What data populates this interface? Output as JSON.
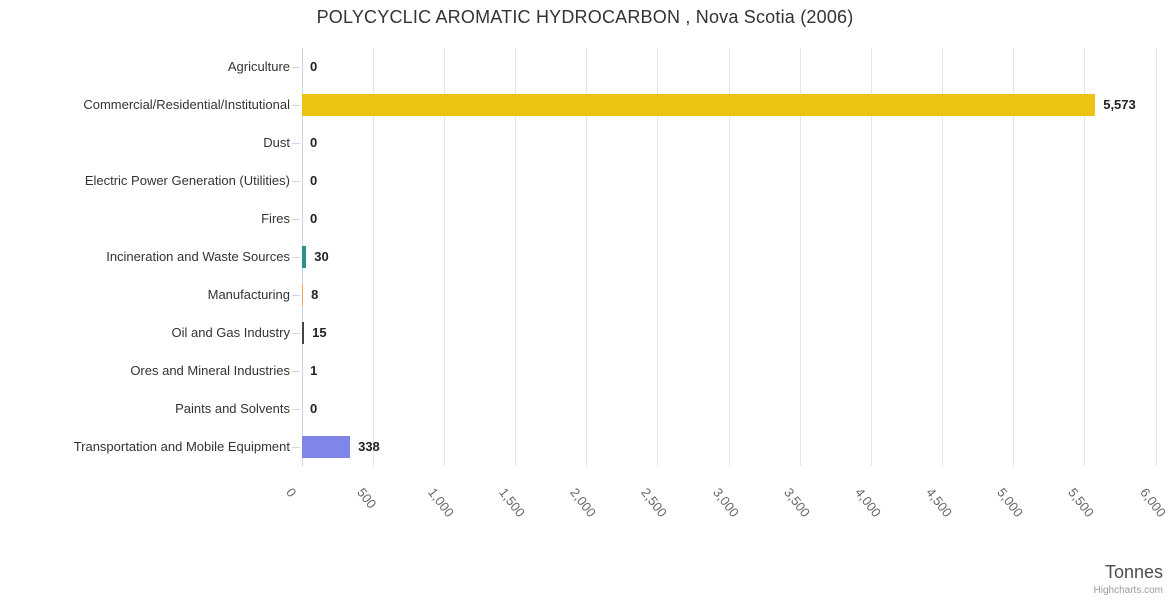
{
  "title": "POLYCYCLIC AROMATIC HYDROCARBON , Nova Scotia (2006)",
  "xaxis": {
    "title": "Tonnes",
    "tick_labels": [
      "0",
      "500",
      "1,000",
      "1,500",
      "2,000",
      "2,500",
      "3,000",
      "3,500",
      "4,000",
      "4,500",
      "5,000",
      "5,500",
      "6,000"
    ]
  },
  "credits": "Highcharts.com",
  "colors": {
    "grid": "#e6e6e6",
    "axis_line": "#ccd6eb",
    "tick": "#ccd6eb",
    "title_text": "#333333",
    "category_text": "#333333",
    "value_text": "#222222",
    "xtick_text": "#666666",
    "xaxis_title_text": "#4d4d4d",
    "credits_text": "#999999"
  },
  "chart_data": {
    "type": "bar",
    "orientation": "horizontal",
    "title": "POLYCYCLIC AROMATIC HYDROCARBON , Nova Scotia (2006)",
    "xlabel": "Tonnes",
    "xlim": [
      0,
      6000
    ],
    "x_tick_step": 500,
    "grid": true,
    "legend": false,
    "categories": [
      "Agriculture",
      "Commercial/Residential/Institutional",
      "Dust",
      "Electric Power Generation (Utilities)",
      "Fires",
      "Incineration and Waste Sources",
      "Manufacturing",
      "Oil and Gas Industry",
      "Ores and Mineral Industries",
      "Paints and Solvents",
      "Transportation and Mobile Equipment"
    ],
    "values": [
      0,
      5573,
      0,
      0,
      0,
      30,
      8,
      15,
      1,
      0,
      338
    ],
    "value_labels": [
      "0",
      "5,573",
      "0",
      "0",
      "0",
      "30",
      "8",
      "15",
      "1",
      "0",
      "338"
    ],
    "bar_colors": [
      null,
      "#ECC213",
      null,
      null,
      null,
      "#2B908F",
      "#F7A35C",
      "#434348",
      null,
      null,
      "#8085E9"
    ]
  }
}
